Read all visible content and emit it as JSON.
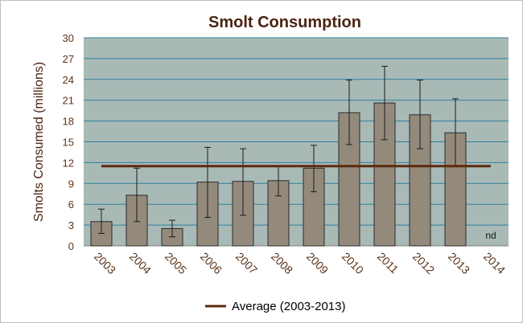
{
  "chart_data": {
    "type": "bar",
    "title": "Smolt Consumption",
    "ylabel": "Smolts Consumed  (millions)",
    "xlabel": "",
    "categories": [
      "2003",
      "2004",
      "2005",
      "2006",
      "2007",
      "2008",
      "2009",
      "2010",
      "2011",
      "2012",
      "2013",
      "2014"
    ],
    "values": [
      3.5,
      7.3,
      2.5,
      9.2,
      9.3,
      9.4,
      11.2,
      19.2,
      20.6,
      18.9,
      16.3,
      null
    ],
    "error_low": [
      1.8,
      3.5,
      1.3,
      4.1,
      4.4,
      7.2,
      7.8,
      14.6,
      15.3,
      14.0,
      11.5,
      null
    ],
    "error_high": [
      5.3,
      11.2,
      3.7,
      14.2,
      14.0,
      11.5,
      14.5,
      23.9,
      25.9,
      23.9,
      21.2,
      null
    ],
    "point_labels": [
      "",
      "",
      "",
      "",
      "",
      "",
      "",
      "",
      "",
      "",
      "",
      "nd"
    ],
    "average": {
      "label": "Average (2003-2013)",
      "value": 11.5
    },
    "ylim": [
      0,
      30
    ],
    "yticks": [
      0,
      3,
      6,
      9,
      12,
      15,
      18,
      21,
      24,
      27,
      30
    ],
    "grid": true,
    "legend": "bottom",
    "colors": {
      "bar_fill": "#948a7c",
      "bar_stroke": "#2b2b2b",
      "average_line": "#5c2a0e",
      "plot_background": "#a9bab6",
      "gridline": "#2f7f9f",
      "title_text": "#4a2511",
      "axis_label_text": "#4a2511",
      "tick_label_text": "#5c3317"
    }
  }
}
